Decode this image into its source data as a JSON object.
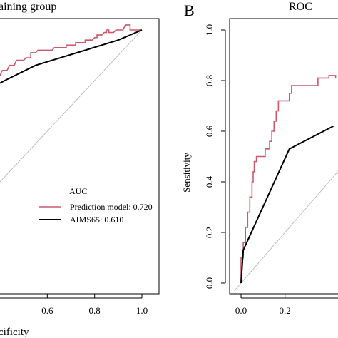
{
  "chart_data": [
    {
      "type": "line",
      "panel_label": "",
      "title": "aining group",
      "xlabel": "cificity",
      "ylabel": "",
      "xlim": [
        0.4,
        1.0
      ],
      "ylim": [
        0.0,
        1.0
      ],
      "x_ticks": [
        "0.6",
        "0.8",
        "1.0"
      ],
      "x_tick_values": [
        0.6,
        0.8,
        1.0
      ],
      "legend": {
        "title": "AUC",
        "placement": "bottom-right",
        "entries": [
          {
            "label": "Prediction model: 0.720",
            "color": "#c9596b"
          },
          {
            "label": "AIMS65: 0.610",
            "color": "#000000"
          }
        ]
      },
      "series": [
        {
          "color": "#c9596b",
          "points": [
            [
              0.4,
              0.82
            ],
            [
              0.41,
              0.84
            ],
            [
              0.43,
              0.84
            ],
            [
              0.44,
              0.86
            ],
            [
              0.46,
              0.86
            ],
            [
              0.47,
              0.88
            ],
            [
              0.5,
              0.88
            ],
            [
              0.51,
              0.89
            ],
            [
              0.53,
              0.89
            ],
            [
              0.53,
              0.91
            ],
            [
              0.55,
              0.91
            ],
            [
              0.56,
              0.92
            ],
            [
              0.62,
              0.92
            ],
            [
              0.63,
              0.93
            ],
            [
              0.68,
              0.93
            ],
            [
              0.68,
              0.94
            ],
            [
              0.72,
              0.94
            ],
            [
              0.72,
              0.95
            ],
            [
              0.76,
              0.95
            ],
            [
              0.76,
              0.96
            ],
            [
              0.79,
              0.96
            ],
            [
              0.8,
              0.97
            ],
            [
              0.81,
              0.97
            ],
            [
              0.81,
              0.98
            ],
            [
              0.83,
              0.98
            ],
            [
              0.84,
              0.99
            ],
            [
              0.85,
              0.99
            ],
            [
              0.85,
              1.0
            ],
            [
              0.86,
              1.0
            ],
            [
              0.86,
              0.99
            ],
            [
              0.88,
              0.99
            ],
            [
              0.89,
              1.0
            ],
            [
              0.92,
              1.0
            ],
            [
              0.93,
              1.02
            ],
            [
              0.95,
              1.02
            ],
            [
              0.95,
              1.0
            ],
            [
              1.0,
              1.0
            ]
          ]
        },
        {
          "color": "#000000",
          "points": [
            [
              0.4,
              0.79
            ],
            [
              0.42,
              0.8
            ],
            [
              0.55,
              0.86
            ],
            [
              0.9,
              0.96
            ],
            [
              1.0,
              1.0
            ]
          ]
        }
      ],
      "reference_line": {
        "color": "#b0b0b0"
      }
    },
    {
      "type": "line",
      "panel_label": "B",
      "title": "ROC",
      "xlabel": "",
      "ylabel": "Sensitivity",
      "xlim": [
        0.0,
        0.6
      ],
      "ylim": [
        0.0,
        1.0
      ],
      "x_ticks": [
        "0.0",
        "0.2"
      ],
      "x_tick_values": [
        0.0,
        0.2
      ],
      "y_ticks": [
        "0.0",
        "0.2",
        "0.4",
        "0.6",
        "0.8",
        "1.0"
      ],
      "y_tick_values": [
        0.0,
        0.2,
        0.4,
        0.6,
        0.8,
        1.0
      ],
      "series": [
        {
          "color": "#c9596b",
          "points": [
            [
              0.0,
              0.0
            ],
            [
              0.0,
              0.1
            ],
            [
              0.01,
              0.1
            ],
            [
              0.01,
              0.16
            ],
            [
              0.02,
              0.16
            ],
            [
              0.02,
              0.22
            ],
            [
              0.03,
              0.22
            ],
            [
              0.03,
              0.28
            ],
            [
              0.04,
              0.28
            ],
            [
              0.04,
              0.34
            ],
            [
              0.05,
              0.34
            ],
            [
              0.05,
              0.4
            ],
            [
              0.055,
              0.4
            ],
            [
              0.055,
              0.44
            ],
            [
              0.06,
              0.44
            ],
            [
              0.06,
              0.48
            ],
            [
              0.07,
              0.48
            ],
            [
              0.07,
              0.5
            ],
            [
              0.11,
              0.5
            ],
            [
              0.11,
              0.53
            ],
            [
              0.13,
              0.53
            ],
            [
              0.13,
              0.56
            ],
            [
              0.14,
              0.56
            ],
            [
              0.14,
              0.6
            ],
            [
              0.15,
              0.6
            ],
            [
              0.15,
              0.64
            ],
            [
              0.16,
              0.64
            ],
            [
              0.16,
              0.68
            ],
            [
              0.17,
              0.68
            ],
            [
              0.17,
              0.72
            ],
            [
              0.22,
              0.72
            ],
            [
              0.22,
              0.75
            ],
            [
              0.23,
              0.75
            ],
            [
              0.23,
              0.78
            ],
            [
              0.35,
              0.78
            ],
            [
              0.35,
              0.81
            ],
            [
              0.4,
              0.81
            ],
            [
              0.4,
              0.82
            ],
            [
              0.43,
              0.82
            ],
            [
              0.43,
              0.81
            ]
          ]
        },
        {
          "color": "#000000",
          "points": [
            [
              0.0,
              0.0
            ],
            [
              0.01,
              0.13
            ],
            [
              0.22,
              0.53
            ],
            [
              0.42,
              0.62
            ]
          ]
        }
      ],
      "reference_line": {
        "color": "#b0b0b0"
      }
    }
  ]
}
